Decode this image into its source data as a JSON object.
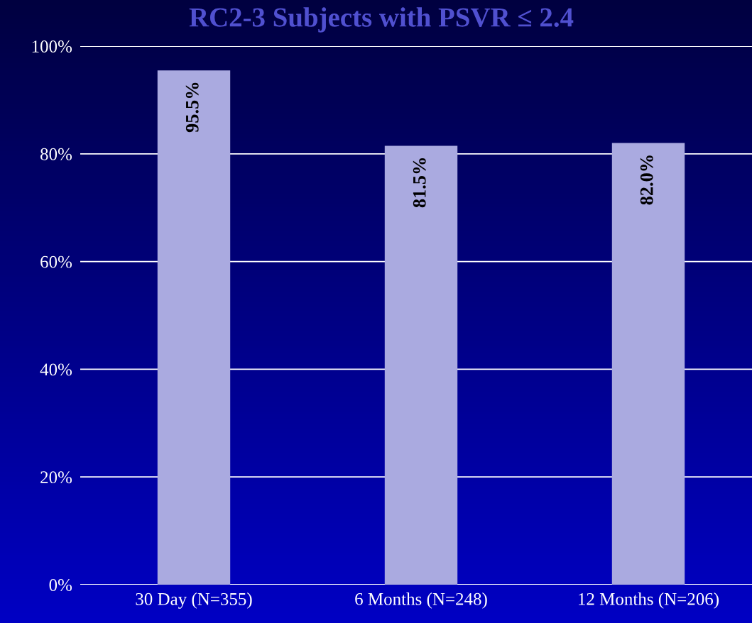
{
  "chart_data": {
    "type": "bar",
    "title": "RC2-3 Subjects with PSVR ≤ 2.4",
    "categories": [
      "30 Day (N=355)",
      "6 Months (N=248)",
      "12 Months (N=206)"
    ],
    "values": [
      95.5,
      81.5,
      82.0
    ],
    "color": "#aaaae0",
    "value_labels": [
      "95.5%",
      "81.5%",
      "82.0%"
    ],
    "ylim": [
      0,
      100
    ],
    "yticks": [
      {
        "value": 0,
        "label": "0%"
      },
      {
        "value": 20,
        "label": "20%"
      },
      {
        "value": 40,
        "label": "40%"
      },
      {
        "value": 60,
        "label": "60%"
      },
      {
        "value": 80,
        "label": "80%"
      },
      {
        "value": 100,
        "label": "100%"
      }
    ],
    "grid": "y"
  }
}
